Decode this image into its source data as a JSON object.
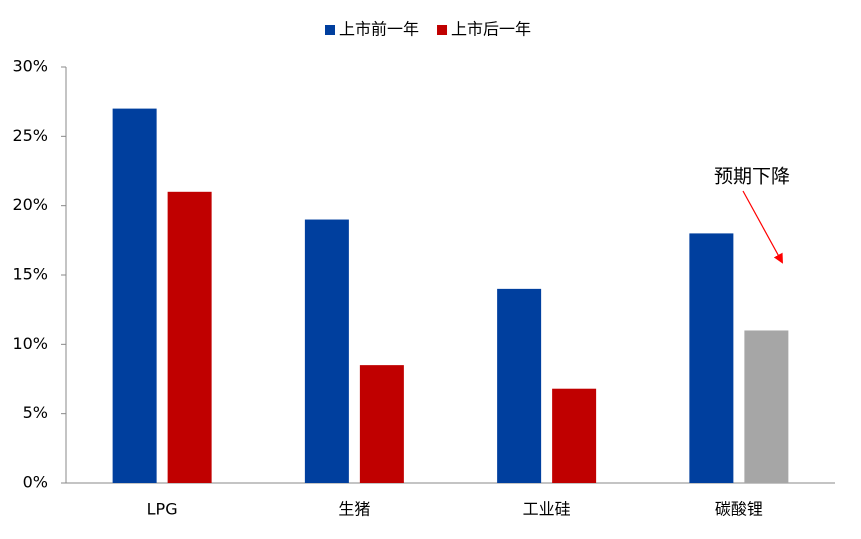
{
  "chart_data": {
    "type": "bar",
    "categories": [
      "LPG",
      "生猪",
      "工业硅",
      "碳酸锂"
    ],
    "series": [
      {
        "name": "上市前一年",
        "color": "#003f9e",
        "values": [
          27,
          19,
          14,
          18
        ]
      },
      {
        "name": "上市后一年",
        "color": "#c00000",
        "values": [
          21,
          8.5,
          6.8,
          11
        ],
        "colors": [
          "#c00000",
          "#c00000",
          "#c00000",
          "#a6a6a6"
        ]
      }
    ],
    "ylim": [
      0,
      30
    ],
    "yticks": [
      {
        "value": 0,
        "label": "0%"
      },
      {
        "value": 5,
        "label": "5%"
      },
      {
        "value": 10,
        "label": "10%"
      },
      {
        "value": 15,
        "label": "15%"
      },
      {
        "value": 20,
        "label": "20%"
      },
      {
        "value": 25,
        "label": "25%"
      },
      {
        "value": 30,
        "label": "30%"
      }
    ],
    "grid": false,
    "legend": "top",
    "annotation": "预期下降"
  }
}
